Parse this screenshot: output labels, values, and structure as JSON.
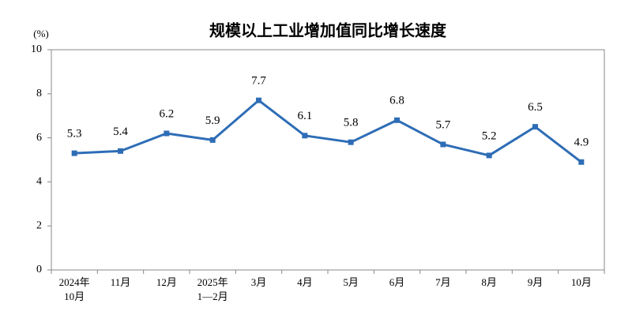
{
  "chart_data": {
    "type": "line",
    "title": "规模以上工业增加值同比增长速度",
    "y_label": "(%)",
    "categories": [
      "2024年\n10月",
      "11月",
      "12月",
      "2025年\n1—2月",
      "3月",
      "4月",
      "5月",
      "6月",
      "7月",
      "8月",
      "9月",
      "10月"
    ],
    "values": [
      5.3,
      5.4,
      6.2,
      5.9,
      7.7,
      6.1,
      5.8,
      6.8,
      5.7,
      5.2,
      6.5,
      4.9
    ],
    "color": "#2e6db6",
    "ylim": [
      0,
      10
    ],
    "yticks": [
      0,
      2,
      4,
      6,
      8,
      10
    ],
    "grid": false
  }
}
